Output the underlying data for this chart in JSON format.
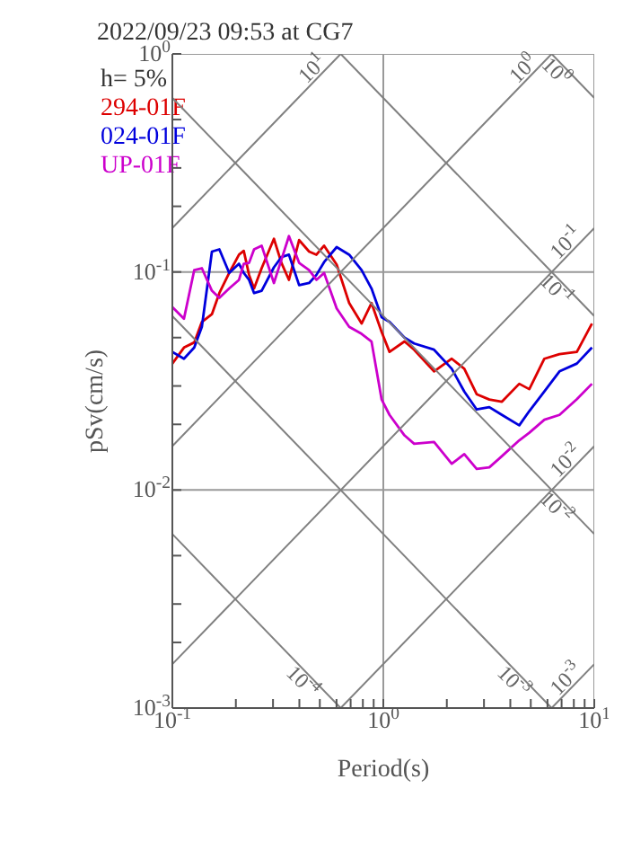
{
  "chart_data": {
    "type": "line",
    "title": "2022/09/23 09:53 at CG7",
    "xlabel": "Period(s)",
    "ylabel": "pSv(cm/s)",
    "annotations": [
      "h= 5%"
    ],
    "log": "xy",
    "grid": true,
    "legend": "top left",
    "marker": "none",
    "line_style": "solid",
    "xlim": [
      0.1,
      10
    ],
    "ylim": [
      0.001,
      1
    ],
    "xticks": [
      {
        "value": 0.1,
        "label": "10$^{-1}$"
      },
      {
        "value": 0.2,
        "label": null
      },
      {
        "value": 0.3,
        "label": null
      },
      {
        "value": 0.4,
        "label": null
      },
      {
        "value": 0.5,
        "label": null
      },
      {
        "value": 0.6,
        "label": null
      },
      {
        "value": 0.7,
        "label": null
      },
      {
        "value": 0.8,
        "label": null
      },
      {
        "value": 0.9,
        "label": null
      },
      {
        "value": 1,
        "label": "10$^{0}$"
      },
      {
        "value": 2,
        "label": null
      },
      {
        "value": 3,
        "label": null
      },
      {
        "value": 4,
        "label": null
      },
      {
        "value": 5,
        "label": null
      },
      {
        "value": 6,
        "label": null
      },
      {
        "value": 7,
        "label": null
      },
      {
        "value": 8,
        "label": null
      },
      {
        "value": 9,
        "label": null
      },
      {
        "value": 10,
        "label": "10$^{1}$"
      }
    ],
    "yticks": [
      {
        "value": 0.001,
        "label": "10$^{-3}$"
      },
      {
        "value": 0.002,
        "label": null
      },
      {
        "value": 0.003,
        "label": null
      },
      {
        "value": 0.005,
        "label": null
      },
      {
        "value": 0.01,
        "label": "10$^{-2}$"
      },
      {
        "value": 0.02,
        "label": null
      },
      {
        "value": 0.03,
        "label": null
      },
      {
        "value": 0.05,
        "label": null
      },
      {
        "value": 0.1,
        "label": "10$^{-1}$"
      },
      {
        "value": 0.2,
        "label": null
      },
      {
        "value": 0.3,
        "label": null
      },
      {
        "value": 0.5,
        "label": null
      },
      {
        "value": 1,
        "label": "10$^{0}$"
      }
    ],
    "x": [
      0.1,
      0.1135,
      0.127,
      0.138,
      0.154,
      0.167,
      0.186,
      0.207,
      0.218,
      0.231,
      0.244,
      0.265,
      0.303,
      0.329,
      0.357,
      0.399,
      0.445,
      0.482,
      0.524,
      0.601,
      0.689,
      0.789,
      0.879,
      0.982,
      1.07,
      1.26,
      1.4,
      1.74,
      2.11,
      2.42,
      2.77,
      3.18,
      3.65,
      4.41,
      4.92,
      5.8,
      6.84,
      8.27,
      9.75
    ],
    "series": [
      {
        "name": "294-01F",
        "color": "#dd0000",
        "values": [
          0.038,
          0.045,
          0.0475,
          0.059,
          0.064,
          0.08,
          0.099,
          0.12,
          0.125,
          0.097,
          0.084,
          0.104,
          0.142,
          0.11,
          0.092,
          0.14,
          0.124,
          0.12,
          0.132,
          0.108,
          0.072,
          0.058,
          0.072,
          0.053,
          0.043,
          0.048,
          0.044,
          0.035,
          0.04,
          0.036,
          0.0275,
          0.026,
          0.0254,
          0.0307,
          0.029,
          0.04,
          0.042,
          0.043,
          0.058
        ]
      },
      {
        "name": "024-01F",
        "color": "#0000dd",
        "values": [
          0.043,
          0.04,
          0.045,
          0.056,
          0.124,
          0.127,
          0.099,
          0.109,
          0.099,
          0.092,
          0.08,
          0.082,
          0.105,
          0.117,
          0.12,
          0.087,
          0.089,
          0.097,
          0.111,
          0.13,
          0.12,
          0.102,
          0.084,
          0.062,
          0.059,
          0.05,
          0.047,
          0.044,
          0.036,
          0.0283,
          0.0234,
          0.024,
          0.0221,
          0.0198,
          0.023,
          0.0283,
          0.035,
          0.038,
          0.045
        ]
      },
      {
        "name": "UP-01F",
        "color": "#cc00cc",
        "values": [
          0.069,
          0.061,
          0.102,
          0.104,
          0.082,
          0.076,
          0.084,
          0.092,
          0.109,
          0.11,
          0.127,
          0.132,
          0.089,
          0.114,
          0.146,
          0.11,
          0.102,
          0.092,
          0.099,
          0.068,
          0.056,
          0.052,
          0.048,
          0.026,
          0.0221,
          0.0178,
          0.0163,
          0.0166,
          0.0132,
          0.0146,
          0.0125,
          0.0127,
          0.0143,
          0.0169,
          0.0183,
          0.021,
          0.0221,
          0.0261,
          0.0307
        ]
      },
      {
        "name": "10$^{1}$",
        "color": "#808080",
        "x": [
          0.1,
          0.628
        ],
        "values": [
          0.159,
          1
        ]
      },
      {
        "name": "10$^{0}$",
        "color": "#808080",
        "x": [
          0.1,
          6.28
        ],
        "values": [
          0.0159,
          1
        ]
      },
      {
        "name": "10$^{-1}$",
        "color": "#808080",
        "x": [
          0.1,
          10
        ],
        "values": [
          0.00159,
          0.159
        ]
      },
      {
        "name": "10$^{-2}$",
        "color": "#808080",
        "x": [
          0.628,
          10
        ],
        "values": [
          0.001,
          0.0159
        ]
      },
      {
        "name": "10$^{-3}$",
        "color": "#808080",
        "x": [
          6.28,
          10
        ],
        "values": [
          0.001,
          0.00159
        ]
      },
      {
        "name": "10$^{0}$",
        "color": "#808080",
        "x": [
          6.28,
          10
        ],
        "values": [
          1,
          0.628
        ]
      },
      {
        "name": "10$^{-1}$",
        "color": "#808080",
        "x": [
          0.628,
          10
        ],
        "values": [
          1,
          0.0628
        ]
      },
      {
        "name": "10$^{-2}$",
        "color": "#808080",
        "x": [
          0.1,
          10
        ],
        "values": [
          0.628,
          0.00628
        ]
      },
      {
        "name": "10$^{-3}$",
        "color": "#808080",
        "x": [
          0.1,
          6.28
        ],
        "values": [
          0.0628,
          0.001
        ]
      },
      {
        "name": "10$^{-4}$",
        "color": "#808080",
        "x": [
          0.1,
          0.628
        ],
        "values": [
          0.00628,
          0.001
        ]
      }
    ]
  }
}
